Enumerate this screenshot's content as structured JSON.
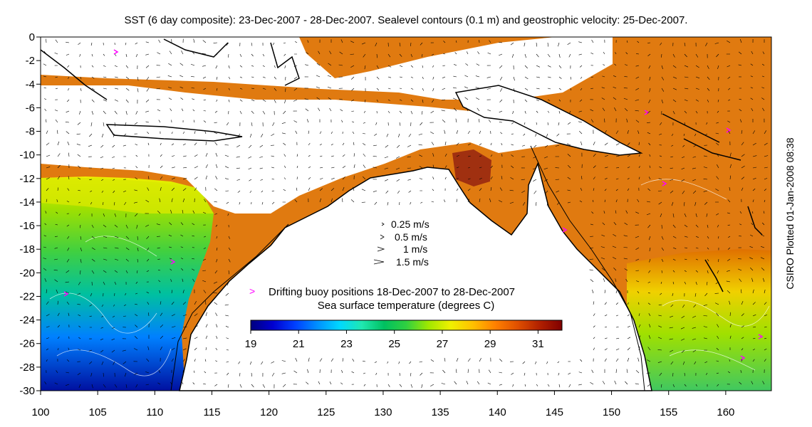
{
  "title": "SST (6 day composite): 23-Dec-2007 - 28-Dec-2007. Sealevel contours (0.1 m) and geostrophic velocity: 25-Dec-2007.",
  "side_credit": "CSIRO Plotted 01-Jan-2008 08:38",
  "map": {
    "lon_range": [
      100,
      164
    ],
    "lat_range": [
      -30,
      0
    ],
    "x_ticks": [
      "100",
      "105",
      "110",
      "115",
      "120",
      "125",
      "130",
      "135",
      "140",
      "145",
      "150",
      "155",
      "160"
    ],
    "y_ticks": [
      "0",
      "-2",
      "-4",
      "-6",
      "-8",
      "-10",
      "-12",
      "-14",
      "-16",
      "-18",
      "-20",
      "-22",
      "-24",
      "-26",
      "-28",
      "-30"
    ]
  },
  "velocity_key": {
    "items": [
      "0.25 m/s",
      "0.5 m/s",
      "1 m/s",
      "1.5 m/s"
    ]
  },
  "buoy_legend": {
    "marker": ">",
    "marker_color": "#ff00ff",
    "label": "Drifting buoy positions 18-Dec-2007 to 28-Dec-2007"
  },
  "colorbar": {
    "title": "Sea surface temperature (degrees C)",
    "range": [
      19,
      32
    ],
    "ticks": [
      "19",
      "21",
      "23",
      "25",
      "27",
      "29",
      "31"
    ],
    "colors": [
      "#00007f",
      "#0000d0",
      "#0040ff",
      "#0090ff",
      "#00d8ff",
      "#20e8b0",
      "#00c060",
      "#30d040",
      "#a0e800",
      "#f0f000",
      "#ffc000",
      "#ff8000",
      "#e05000",
      "#b02000",
      "#800000"
    ]
  },
  "colors": {
    "land": "#ffffff",
    "coast": "#000000",
    "buoy": "#ff00ff"
  }
}
